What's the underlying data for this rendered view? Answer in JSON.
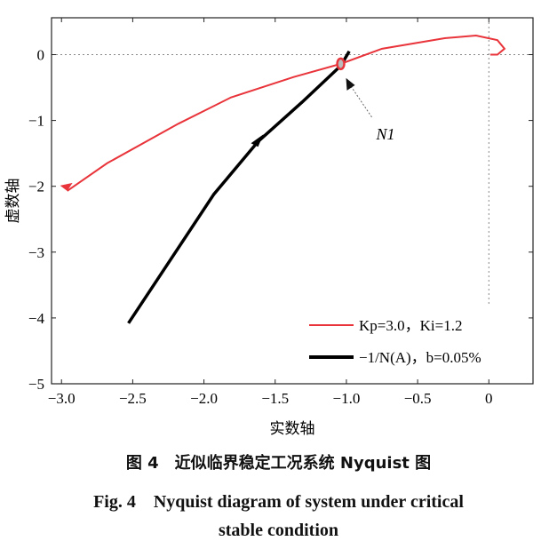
{
  "chart_data": {
    "type": "line",
    "xlabel": "实数轴",
    "ylabel": "虚数轴",
    "xlim": [
      -3.07,
      0.31
    ],
    "ylim": [
      -5,
      0.56
    ],
    "xticks": [
      -3.0,
      -2.5,
      -2.0,
      -1.5,
      -1.0,
      -0.5,
      0
    ],
    "xtick_labels": [
      "−3.0",
      "−2.5",
      "−2.0",
      "−1.5",
      "−1.0",
      "−0.5",
      "0"
    ],
    "yticks": [
      0,
      -1,
      -2,
      -3,
      -4,
      -5
    ],
    "ytick_labels": [
      "0",
      "−1",
      "−2",
      "−3",
      "−4",
      "−5"
    ],
    "grid": false,
    "legend_placement": "bottom-right",
    "series": [
      {
        "name": "Kp=3.0，Ki=1.2",
        "color": "#e8343a",
        "x": [
          -2.96,
          -2.68,
          -2.18,
          -1.81,
          -1.37,
          -1.04,
          -0.75,
          -0.31,
          -0.09,
          0.06,
          0.11,
          0.06,
          0.01
        ],
        "y": [
          -2.07,
          -1.65,
          -1.05,
          -0.65,
          -0.34,
          -0.14,
          0.09,
          0.25,
          0.29,
          0.22,
          0.09,
          0,
          0
        ]
      },
      {
        "name": "−1/N(A)，b=0.05%",
        "color": "#000000",
        "x": [
          -2.53,
          -1.93,
          -1.62,
          -1.31,
          -1.04,
          -0.98
        ],
        "y": [
          -4.08,
          -2.12,
          -1.32,
          -0.72,
          -0.17,
          0.05
        ]
      }
    ],
    "annotations": [
      {
        "text": "N1",
        "x": -1.04,
        "y": -0.14
      }
    ]
  },
  "caption": {
    "cn": "图 4　近似临界稳定工况系统 Nyquist 图",
    "en1": "Fig. 4　Nyquist diagram of system under critical",
    "en2": "stable condition"
  }
}
